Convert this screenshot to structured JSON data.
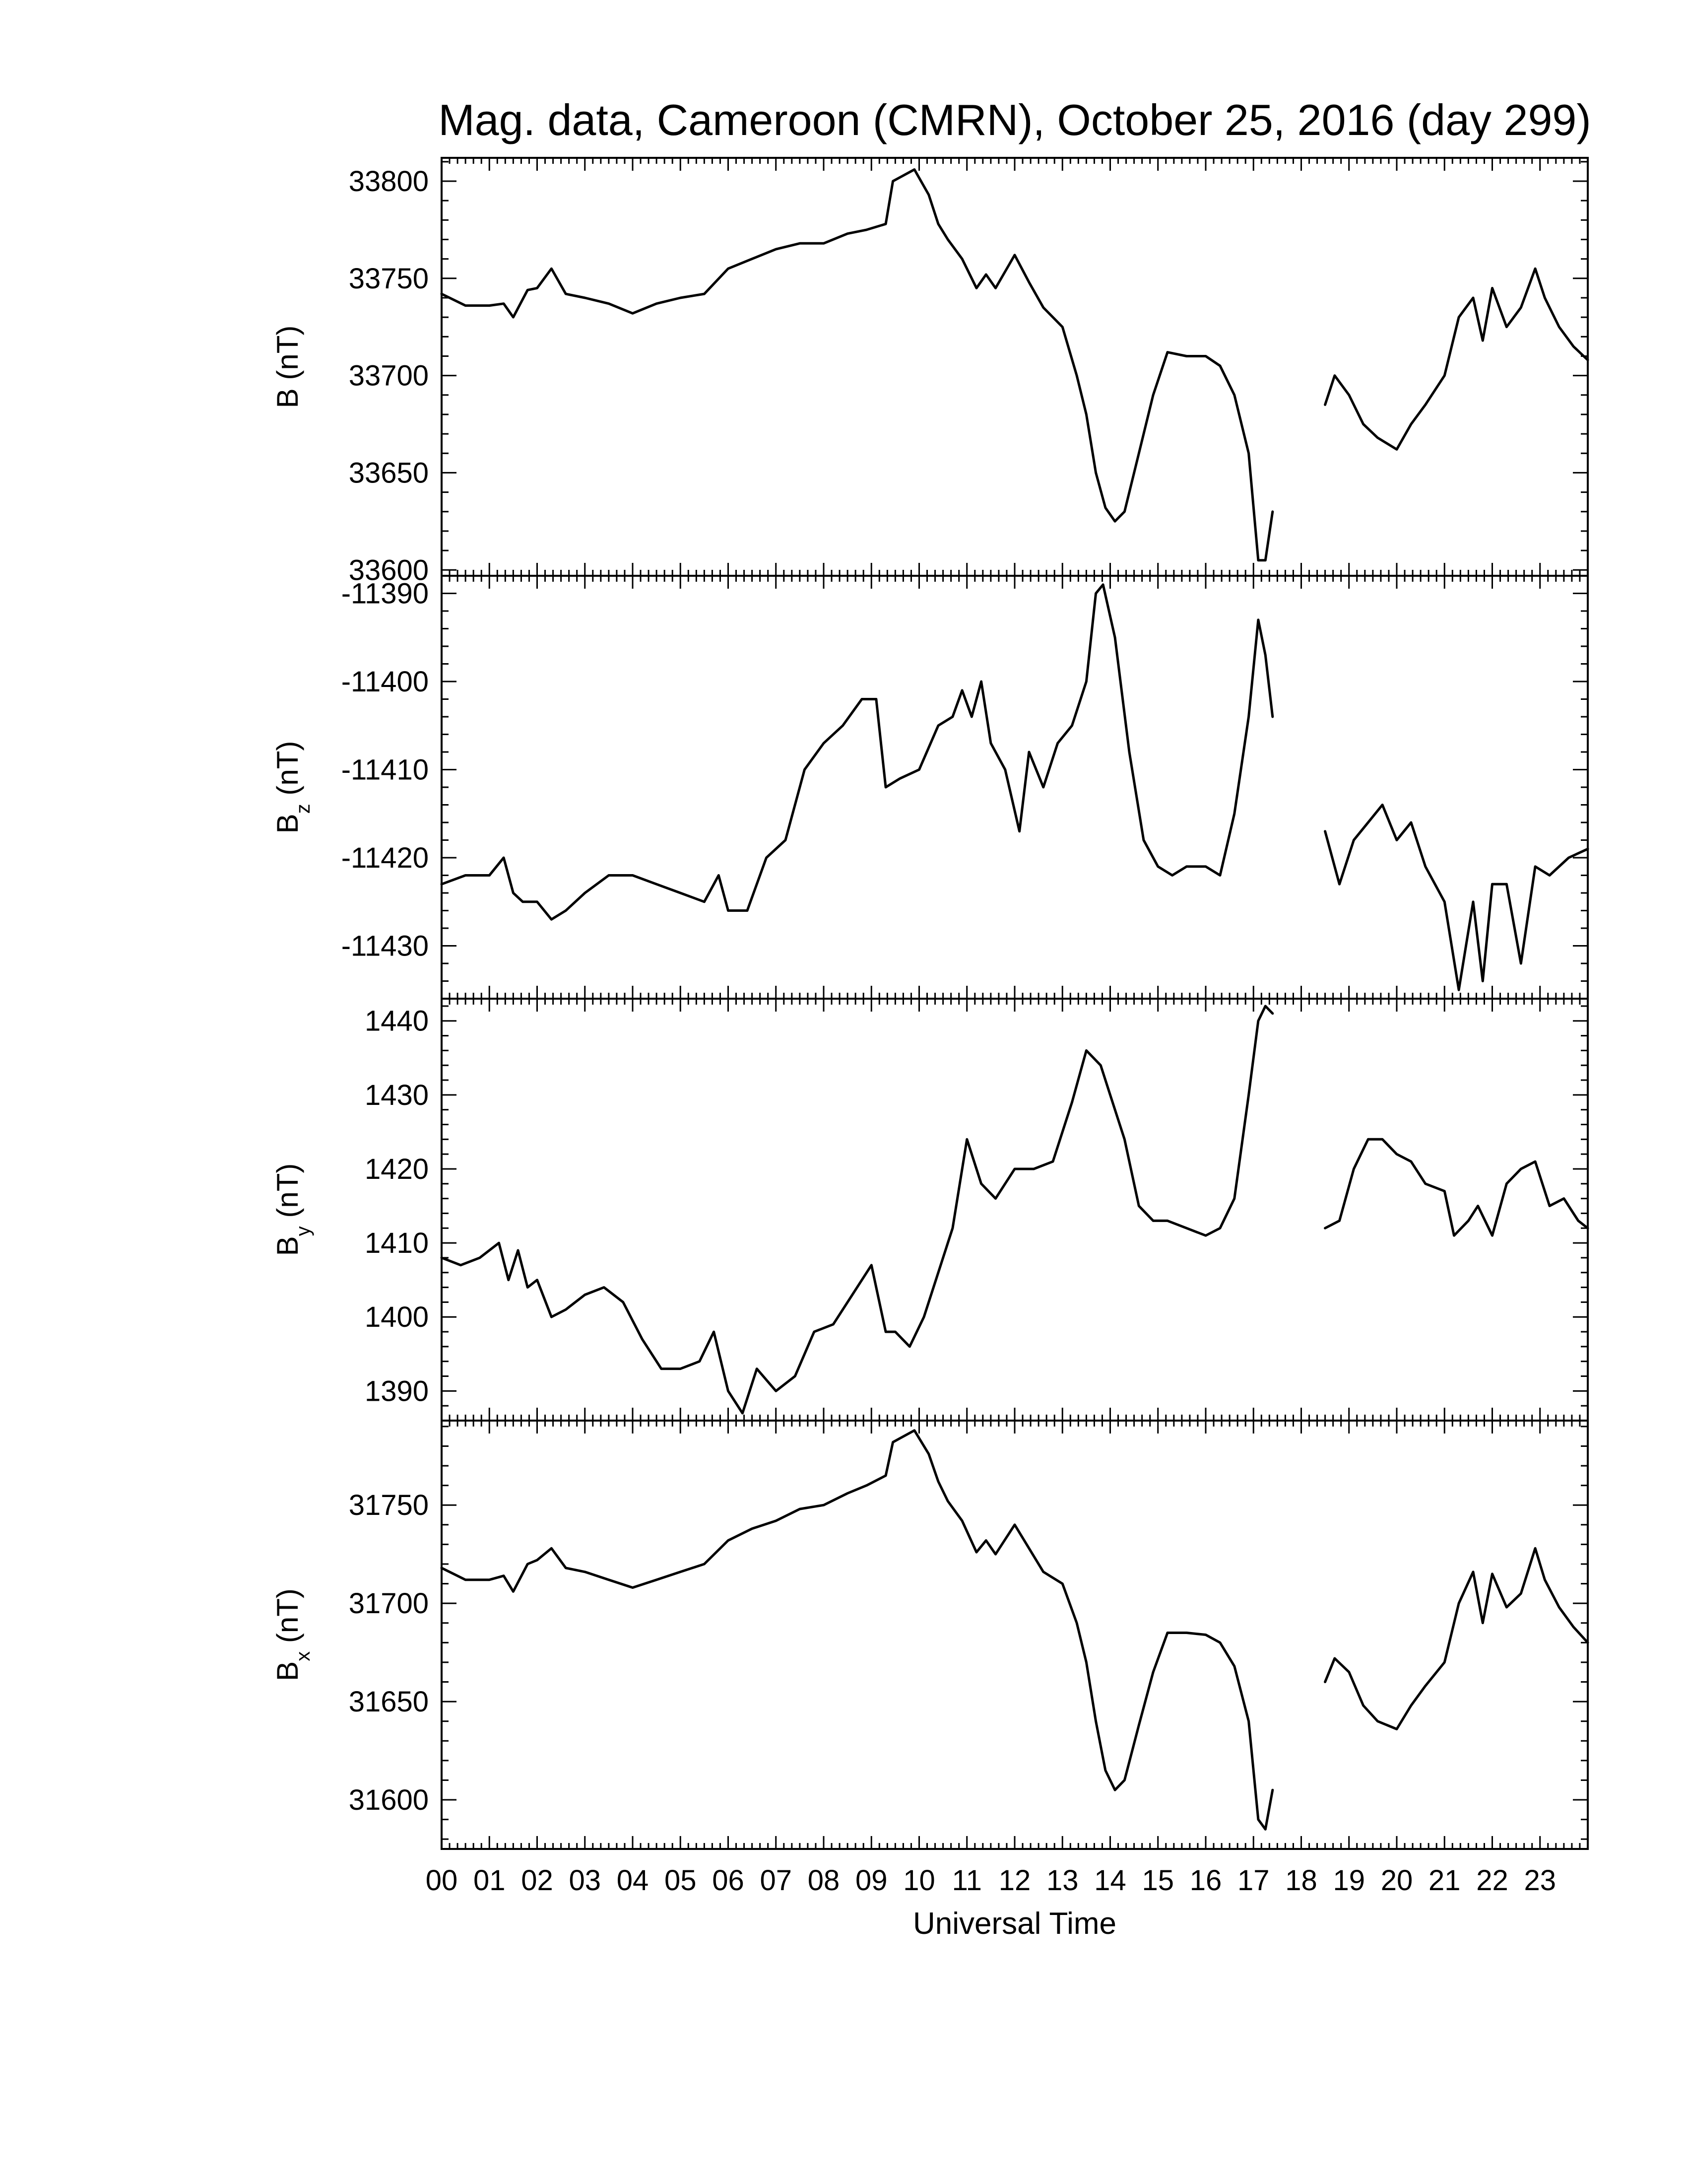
{
  "chart_data": {
    "type": "line",
    "title": "Mag. data, Cameroon (CMRN), October 25, 2016 (day 299)",
    "xlabel": "Universal Time",
    "x_tick_labels": [
      "00",
      "01",
      "02",
      "03",
      "04",
      "05",
      "06",
      "07",
      "08",
      "09",
      "10",
      "11",
      "12",
      "13",
      "14",
      "15",
      "16",
      "17",
      "18",
      "19",
      "20",
      "21",
      "22",
      "23"
    ],
    "xlim": [
      0,
      24
    ],
    "data_gap_hours": [
      17.45,
      18.5
    ],
    "panels": [
      {
        "id": "B",
        "ylabel_main": "B",
        "ylabel_sub": "",
        "ylabel_unit": " (nT)",
        "ylim": [
          33597,
          33812
        ],
        "yticks": [
          33600,
          33650,
          33700,
          33750,
          33800
        ],
        "series": [
          {
            "x": [
              0,
              0.5,
              1,
              1.3,
              1.5,
              1.8,
              2,
              2.3,
              2.6,
              3,
              3.5,
              4,
              4.5,
              5,
              5.5,
              6,
              6.5,
              7,
              7.5,
              8,
              8.5,
              8.9,
              9.3,
              9.45,
              9.6,
              9.9,
              10.2,
              10.4,
              10.6,
              10.9,
              11.2,
              11.4,
              11.6,
              12,
              12.3,
              12.6,
              13,
              13.3,
              13.5,
              13.7,
              13.9,
              14.1,
              14.3,
              14.6,
              14.9,
              15.2,
              15.6,
              16,
              16.3,
              16.6,
              16.9,
              17.1,
              17.25,
              17.4
            ],
            "y": [
              33742,
              33736,
              33736,
              33737,
              33730,
              33744,
              33745,
              33755,
              33742,
              33740,
              33737,
              33732,
              33737,
              33740,
              33742,
              33755,
              33760,
              33765,
              33768,
              33768,
              33773,
              33775,
              33778,
              33800,
              33802,
              33806,
              33793,
              33778,
              33770,
              33760,
              33745,
              33752,
              33745,
              33762,
              33748,
              33735,
              33725,
              33700,
              33680,
              33650,
              33632,
              33625,
              33630,
              33660,
              33690,
              33712,
              33710,
              33710,
              33705,
              33690,
              33660,
              33605,
              33605,
              33630
            ]
          },
          {
            "x": [
              18.5,
              18.7,
              19,
              19.3,
              19.6,
              20,
              20.3,
              20.6,
              21,
              21.3,
              21.6,
              21.8,
              22,
              22.3,
              22.6,
              22.9,
              23.1,
              23.4,
              23.7,
              24
            ],
            "y": [
              33685,
              33700,
              33690,
              33675,
              33668,
              33662,
              33675,
              33685,
              33700,
              33730,
              33740,
              33718,
              33745,
              33725,
              33735,
              33755,
              33740,
              33725,
              33715,
              33708
            ]
          }
        ]
      },
      {
        "id": "Bz",
        "ylabel_main": "B",
        "ylabel_sub": "z",
        "ylabel_unit": " (nT)",
        "ylim": [
          -11436,
          -11388
        ],
        "yticks": [
          -11390,
          -11400,
          -11410,
          -11420,
          -11430
        ],
        "series": [
          {
            "x": [
              0,
              0.5,
              1,
              1.3,
              1.5,
              1.7,
              2,
              2.3,
              2.6,
              3,
              3.5,
              4,
              4.5,
              5,
              5.5,
              5.8,
              6,
              6.4,
              6.8,
              7.2,
              7.6,
              8,
              8.4,
              8.8,
              9.1,
              9.3,
              9.6,
              10,
              10.4,
              10.7,
              10.9,
              11.1,
              11.3,
              11.5,
              11.8,
              12.1,
              12.3,
              12.6,
              12.9,
              13.2,
              13.5,
              13.7,
              13.85,
              14.1,
              14.4,
              14.7,
              15,
              15.3,
              15.6,
              16,
              16.3,
              16.6,
              16.9,
              17.1,
              17.25,
              17.4
            ],
            "y": [
              -11423,
              -11422,
              -11422,
              -11420,
              -11424,
              -11425,
              -11425,
              -11427,
              -11426,
              -11424,
              -11422,
              -11422,
              -11423,
              -11424,
              -11425,
              -11422,
              -11426,
              -11426,
              -11420,
              -11418,
              -11410,
              -11407,
              -11405,
              -11402,
              -11402,
              -11412,
              -11411,
              -11410,
              -11405,
              -11404,
              -11401,
              -11404,
              -11400,
              -11407,
              -11410,
              -11417,
              -11408,
              -11412,
              -11407,
              -11405,
              -11400,
              -11390,
              -11389,
              -11395,
              -11408,
              -11418,
              -11421,
              -11422,
              -11421,
              -11421,
              -11422,
              -11415,
              -11404,
              -11393,
              -11397,
              -11404
            ]
          },
          {
            "x": [
              18.5,
              18.8,
              19.1,
              19.4,
              19.7,
              20,
              20.3,
              20.6,
              21,
              21.3,
              21.6,
              21.8,
              22,
              22.3,
              22.6,
              22.9,
              23.2,
              23.6,
              24
            ],
            "y": [
              -11417,
              -11423,
              -11418,
              -11416,
              -11414,
              -11418,
              -11416,
              -11421,
              -11425,
              -11435,
              -11425,
              -11434,
              -11423,
              -11423,
              -11432,
              -11421,
              -11422,
              -11420,
              -11419
            ]
          }
        ]
      },
      {
        "id": "By",
        "ylabel_main": "B",
        "ylabel_sub": "y",
        "ylabel_unit": " (nT)",
        "ylim": [
          1386,
          1443
        ],
        "yticks": [
          1390,
          1400,
          1410,
          1420,
          1430,
          1440
        ],
        "series": [
          {
            "x": [
              0,
              0.4,
              0.8,
              1.2,
              1.4,
              1.6,
              1.8,
              2,
              2.3,
              2.6,
              3,
              3.4,
              3.8,
              4.2,
              4.6,
              5,
              5.4,
              5.7,
              6,
              6.3,
              6.6,
              7,
              7.4,
              7.8,
              8.2,
              8.6,
              9,
              9.3,
              9.5,
              9.8,
              10.1,
              10.4,
              10.7,
              11,
              11.3,
              11.6,
              12,
              12.4,
              12.8,
              13.2,
              13.5,
              13.8,
              14,
              14.3,
              14.6,
              14.9,
              15.2,
              15.6,
              16,
              16.3,
              16.6,
              16.9,
              17.1,
              17.25,
              17.4
            ],
            "y": [
              1408,
              1407,
              1408,
              1410,
              1405,
              1409,
              1404,
              1405,
              1400,
              1401,
              1403,
              1404,
              1402,
              1397,
              1393,
              1393,
              1394,
              1398,
              1390,
              1387,
              1393,
              1390,
              1392,
              1398,
              1399,
              1403,
              1407,
              1398,
              1398,
              1396,
              1400,
              1406,
              1412,
              1424,
              1418,
              1416,
              1420,
              1420,
              1421,
              1429,
              1436,
              1434,
              1430,
              1424,
              1415,
              1413,
              1413,
              1412,
              1411,
              1412,
              1416,
              1430,
              1440,
              1442,
              1441
            ]
          },
          {
            "x": [
              18.5,
              18.8,
              19.1,
              19.4,
              19.7,
              20,
              20.3,
              20.6,
              21,
              21.2,
              21.5,
              21.7,
              22,
              22.3,
              22.6,
              22.9,
              23.2,
              23.5,
              23.8,
              24
            ],
            "y": [
              1412,
              1413,
              1420,
              1424,
              1424,
              1422,
              1421,
              1418,
              1417,
              1411,
              1413,
              1415,
              1411,
              1418,
              1420,
              1421,
              1415,
              1416,
              1413,
              1412
            ]
          }
        ]
      },
      {
        "id": "Bx",
        "ylabel_main": "B",
        "ylabel_sub": "x",
        "ylabel_unit": " (nT)",
        "ylim": [
          31575,
          31793
        ],
        "yticks": [
          31600,
          31650,
          31700,
          31750
        ],
        "series": [
          {
            "x": [
              0,
              0.5,
              1,
              1.3,
              1.5,
              1.8,
              2,
              2.3,
              2.6,
              3,
              3.5,
              4,
              4.5,
              5,
              5.5,
              6,
              6.5,
              7,
              7.5,
              8,
              8.5,
              8.9,
              9.3,
              9.45,
              9.6,
              9.9,
              10.2,
              10.4,
              10.6,
              10.9,
              11.2,
              11.4,
              11.6,
              12,
              12.3,
              12.6,
              13,
              13.3,
              13.5,
              13.7,
              13.9,
              14.1,
              14.3,
              14.6,
              14.9,
              15.2,
              15.6,
              16,
              16.3,
              16.6,
              16.9,
              17.1,
              17.25,
              17.4
            ],
            "y": [
              31718,
              31712,
              31712,
              31714,
              31706,
              31720,
              31722,
              31728,
              31718,
              31716,
              31712,
              31708,
              31712,
              31716,
              31720,
              31732,
              31738,
              31742,
              31748,
              31750,
              31756,
              31760,
              31765,
              31782,
              31784,
              31788,
              31776,
              31762,
              31752,
              31742,
              31726,
              31732,
              31725,
              31740,
              31728,
              31716,
              31710,
              31690,
              31670,
              31640,
              31615,
              31605,
              31610,
              31638,
              31665,
              31685,
              31685,
              31684,
              31680,
              31668,
              31640,
              31590,
              31585,
              31605
            ]
          },
          {
            "x": [
              18.5,
              18.7,
              19,
              19.3,
              19.6,
              20,
              20.3,
              20.6,
              21,
              21.3,
              21.6,
              21.8,
              22,
              22.3,
              22.6,
              22.9,
              23.1,
              23.4,
              23.7,
              24
            ],
            "y": [
              31660,
              31672,
              31665,
              31648,
              31640,
              31636,
              31648,
              31658,
              31670,
              31700,
              31716,
              31690,
              31715,
              31698,
              31705,
              31728,
              31712,
              31698,
              31688,
              31680
            ]
          }
        ]
      }
    ]
  }
}
